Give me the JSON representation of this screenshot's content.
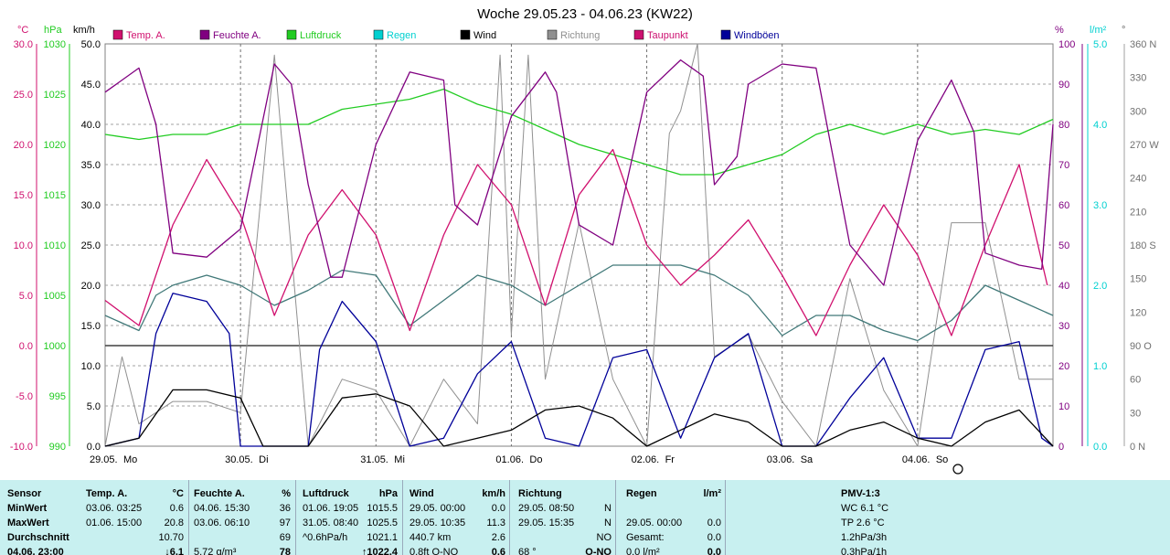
{
  "title": "Woche 29.05.23 - 04.06.23 (KW22)",
  "colors": {
    "temp": "#d0106e",
    "humid": "#800080",
    "pressure": "#22cc22",
    "rain": "#00d0d0",
    "wind": "#000000",
    "dir": "#909090",
    "dew": "#407878",
    "gust": "#000099",
    "stats_bg": "#c8f0f0"
  },
  "legend": [
    {
      "label": "Temp. A.",
      "color": "#d0106e"
    },
    {
      "label": "Feuchte A.",
      "color": "#800080"
    },
    {
      "label": "Luftdruck",
      "color": "#22cc22"
    },
    {
      "label": "Regen",
      "color": "#00d0d0"
    },
    {
      "label": "Wind",
      "color": "#000000"
    },
    {
      "label": "Richtung",
      "color": "#909090"
    },
    {
      "label": "Taupunkt",
      "color": "#cc1070"
    },
    {
      "label": "Windböen",
      "color": "#000099"
    }
  ],
  "chart_data": {
    "type": "line",
    "title": "Woche 29.05.23 - 04.06.23 (KW22)",
    "x_labels": [
      "29.05.",
      "Mo",
      "30.05.",
      "Di",
      "31.05.",
      "Mi",
      "01.06.",
      "Do",
      "02.06.",
      "Fr",
      "03.06.",
      "Sa",
      "04.06.",
      "So"
    ],
    "x_unit": "hours since 29.05. 00:00",
    "axes": {
      "temp": {
        "unit": "°C",
        "range": [
          -10,
          30
        ],
        "ticks": [
          "30.0",
          "25.0",
          "20.0",
          "15.0",
          "10.0",
          "5.0",
          "0.0",
          "-5.0",
          "-10.0"
        ]
      },
      "pressure": {
        "unit": "hPa",
        "range": [
          990,
          1030
        ],
        "ticks": [
          "1030",
          "1025",
          "1020",
          "1015",
          "1010",
          "1005",
          "1000",
          "995",
          "990"
        ]
      },
      "wind": {
        "unit": "km/h",
        "range": [
          0,
          50
        ],
        "ticks": [
          "50.0",
          "45.0",
          "40.0",
          "35.0",
          "30.0",
          "25.0",
          "20.0",
          "15.0",
          "10.0",
          "5.0",
          "0.0"
        ]
      },
      "humidity": {
        "unit": "%",
        "range": [
          0,
          100
        ],
        "ticks": [
          "100",
          "90",
          "80",
          "70",
          "60",
          "50",
          "40",
          "30",
          "20",
          "10",
          "0"
        ]
      },
      "rain": {
        "unit": "l/m²",
        "range": [
          0,
          5
        ],
        "ticks": [
          "5.0",
          "4.0",
          "3.0",
          "2.0",
          "1.0",
          "0.0"
        ]
      },
      "direction": {
        "unit": "°",
        "range": [
          0,
          360
        ],
        "ticks": [
          "360 N",
          "330",
          "300",
          "270 W",
          "240",
          "210",
          "180 S",
          "150",
          "120",
          "90 O",
          "60",
          "30",
          "0 N"
        ]
      }
    },
    "series": [
      {
        "name": "Temp. A.",
        "axis": "temp",
        "points": [
          [
            0,
            4.5
          ],
          [
            6,
            2
          ],
          [
            12,
            12
          ],
          [
            18,
            18.5
          ],
          [
            24,
            13
          ],
          [
            30,
            3
          ],
          [
            36,
            11
          ],
          [
            42,
            15.5
          ],
          [
            48,
            11
          ],
          [
            54,
            1.5
          ],
          [
            60,
            11
          ],
          [
            66,
            18
          ],
          [
            72,
            14
          ],
          [
            78,
            4
          ],
          [
            84,
            15
          ],
          [
            90,
            19.5
          ],
          [
            96,
            10
          ],
          [
            102,
            6
          ],
          [
            108,
            9
          ],
          [
            114,
            12.5
          ],
          [
            120,
            7
          ],
          [
            126,
            1
          ],
          [
            132,
            8
          ],
          [
            138,
            14
          ],
          [
            144,
            9
          ],
          [
            150,
            1
          ],
          [
            156,
            10
          ],
          [
            162,
            18
          ],
          [
            167,
            6
          ]
        ]
      },
      {
        "name": "Feuchte A.",
        "axis": "humidity",
        "points": [
          [
            0,
            88
          ],
          [
            6,
            94
          ],
          [
            9,
            80
          ],
          [
            12,
            48
          ],
          [
            18,
            47
          ],
          [
            24,
            54
          ],
          [
            30,
            95
          ],
          [
            33,
            90
          ],
          [
            36,
            65
          ],
          [
            40,
            42
          ],
          [
            42,
            42
          ],
          [
            48,
            75
          ],
          [
            54,
            93
          ],
          [
            60,
            91
          ],
          [
            62,
            60
          ],
          [
            66,
            55
          ],
          [
            72,
            82
          ],
          [
            78,
            93
          ],
          [
            80,
            88
          ],
          [
            84,
            55
          ],
          [
            90,
            50
          ],
          [
            96,
            88
          ],
          [
            102,
            96
          ],
          [
            106,
            92
          ],
          [
            108,
            65
          ],
          [
            112,
            72
          ],
          [
            114,
            90
          ],
          [
            120,
            95
          ],
          [
            126,
            94
          ],
          [
            132,
            50
          ],
          [
            138,
            40
          ],
          [
            144,
            76
          ],
          [
            150,
            91
          ],
          [
            154,
            78
          ],
          [
            156,
            48
          ],
          [
            162,
            45
          ],
          [
            166,
            44
          ],
          [
            168,
            80
          ]
        ]
      },
      {
        "name": "Luftdruck",
        "axis": "pressure",
        "points": [
          [
            0,
            1021
          ],
          [
            6,
            1020.5
          ],
          [
            12,
            1021
          ],
          [
            18,
            1021
          ],
          [
            24,
            1022
          ],
          [
            36,
            1022
          ],
          [
            42,
            1023.5
          ],
          [
            54,
            1024.5
          ],
          [
            60,
            1025.5
          ],
          [
            66,
            1024
          ],
          [
            72,
            1023
          ],
          [
            84,
            1020
          ],
          [
            96,
            1018
          ],
          [
            102,
            1017
          ],
          [
            108,
            1017
          ],
          [
            114,
            1018
          ],
          [
            120,
            1019
          ],
          [
            126,
            1021
          ],
          [
            132,
            1022
          ],
          [
            138,
            1021
          ],
          [
            144,
            1022
          ],
          [
            150,
            1021
          ],
          [
            156,
            1021.5
          ],
          [
            162,
            1021
          ],
          [
            168,
            1022.5
          ]
        ]
      },
      {
        "name": "Taupunkt",
        "axis": "temp",
        "points": [
          [
            0,
            3
          ],
          [
            6,
            1.5
          ],
          [
            9,
            5
          ],
          [
            12,
            6
          ],
          [
            18,
            7
          ],
          [
            24,
            6
          ],
          [
            30,
            4
          ],
          [
            36,
            5.5
          ],
          [
            42,
            7.5
          ],
          [
            48,
            7
          ],
          [
            54,
            2
          ],
          [
            60,
            4.5
          ],
          [
            66,
            7
          ],
          [
            72,
            6
          ],
          [
            78,
            4
          ],
          [
            84,
            6
          ],
          [
            90,
            8
          ],
          [
            96,
            8
          ],
          [
            102,
            8
          ],
          [
            108,
            7
          ],
          [
            114,
            5
          ],
          [
            120,
            1
          ],
          [
            126,
            3
          ],
          [
            132,
            3
          ],
          [
            138,
            1.5
          ],
          [
            144,
            0.5
          ],
          [
            150,
            2.5
          ],
          [
            156,
            6
          ],
          [
            162,
            4.5
          ],
          [
            168,
            3
          ]
        ]
      },
      {
        "name": "Wind",
        "axis": "wind",
        "points": [
          [
            0,
            0
          ],
          [
            6,
            1
          ],
          [
            12,
            7
          ],
          [
            18,
            7
          ],
          [
            24,
            6
          ],
          [
            28,
            0
          ],
          [
            36,
            0
          ],
          [
            42,
            6
          ],
          [
            48,
            6.5
          ],
          [
            54,
            5
          ],
          [
            60,
            0
          ],
          [
            66,
            1
          ],
          [
            72,
            2
          ],
          [
            78,
            4.5
          ],
          [
            84,
            5
          ],
          [
            90,
            3.5
          ],
          [
            96,
            0
          ],
          [
            102,
            2
          ],
          [
            108,
            4
          ],
          [
            114,
            3
          ],
          [
            120,
            0
          ],
          [
            126,
            0
          ],
          [
            132,
            2
          ],
          [
            138,
            3
          ],
          [
            144,
            1
          ],
          [
            150,
            0
          ],
          [
            156,
            3
          ],
          [
            162,
            4.5
          ],
          [
            168,
            0
          ]
        ]
      },
      {
        "name": "Richtung",
        "axis": "direction",
        "points": [
          [
            0,
            0
          ],
          [
            3,
            80
          ],
          [
            6,
            20
          ],
          [
            12,
            40
          ],
          [
            18,
            40
          ],
          [
            24,
            30
          ],
          [
            30,
            350
          ],
          [
            36,
            0
          ],
          [
            42,
            60
          ],
          [
            48,
            50
          ],
          [
            54,
            0
          ],
          [
            60,
            60
          ],
          [
            66,
            20
          ],
          [
            70,
            350
          ],
          [
            72,
            100
          ],
          [
            75,
            350
          ],
          [
            78,
            60
          ],
          [
            84,
            200
          ],
          [
            90,
            60
          ],
          [
            96,
            0
          ],
          [
            100,
            280
          ],
          [
            102,
            300
          ],
          [
            105,
            360
          ],
          [
            108,
            80
          ],
          [
            114,
            100
          ],
          [
            120,
            40
          ],
          [
            126,
            0
          ],
          [
            132,
            150
          ],
          [
            138,
            50
          ],
          [
            144,
            0
          ],
          [
            150,
            200
          ],
          [
            156,
            200
          ],
          [
            162,
            60
          ],
          [
            168,
            60
          ]
        ]
      },
      {
        "name": "Windböen",
        "axis": "wind",
        "points": [
          [
            0,
            0
          ],
          [
            6,
            1
          ],
          [
            9,
            14
          ],
          [
            12,
            19
          ],
          [
            18,
            18
          ],
          [
            22,
            14
          ],
          [
            24,
            0
          ],
          [
            36,
            0
          ],
          [
            38,
            12
          ],
          [
            42,
            18
          ],
          [
            48,
            13
          ],
          [
            54,
            0
          ],
          [
            60,
            1
          ],
          [
            66,
            9
          ],
          [
            72,
            13
          ],
          [
            78,
            1
          ],
          [
            84,
            0
          ],
          [
            90,
            11
          ],
          [
            96,
            12
          ],
          [
            102,
            1
          ],
          [
            108,
            11
          ],
          [
            114,
            14
          ],
          [
            120,
            0
          ],
          [
            126,
            0
          ],
          [
            132,
            6
          ],
          [
            138,
            11
          ],
          [
            144,
            1
          ],
          [
            150,
            1
          ],
          [
            156,
            12
          ],
          [
            162,
            13
          ],
          [
            166,
            1
          ],
          [
            168,
            0
          ]
        ]
      }
    ],
    "hline": {
      "axis": "temp",
      "value": 0
    },
    "grid": true
  },
  "stats": {
    "headers": [
      "Sensor",
      "Temp. A.",
      "°C",
      "Feuchte A.",
      "%",
      "Luftdruck",
      "hPa",
      "Wind",
      "km/h",
      "Richtung",
      "",
      "Regen",
      "l/m²",
      "PMV-1:3"
    ],
    "rows": [
      [
        "MinWert",
        "03.06.  03:25",
        "0.6",
        "04.06.  15:30",
        "36",
        "01.06.  19:05",
        "1015.5",
        "29.05.  00:00",
        "0.0",
        "29.05.  08:50",
        "N",
        "",
        "",
        "WC 6.1 °C"
      ],
      [
        "MaxWert",
        "01.06.  15:00",
        "20.8",
        "03.06.  06:10",
        "97",
        "31.05.  08:40",
        "1025.5",
        "29.05.  10:35",
        "11.3",
        "29.05.  15:35",
        "N",
        "29.05.  00:00",
        "0.0",
        "TP 2.6 °C"
      ],
      [
        "Durchschnitt",
        "",
        "10.70",
        "",
        "69",
        "^0.6hPa/h",
        "1021.1",
        "440.7 km",
        "2.6",
        "",
        "NO",
        "Gesamt:",
        "0.0",
        "1.2hPa/3h"
      ],
      [
        "04.06. 23:00",
        "",
        "↓6.1",
        "5.72 g/m³",
        "78",
        "",
        "↑1022.4",
        "0.8ft O-NO",
        "0.6",
        "68 °",
        "O-NO",
        "0.0 l/m²",
        "0.0",
        "0.3hPa/1h"
      ]
    ]
  }
}
